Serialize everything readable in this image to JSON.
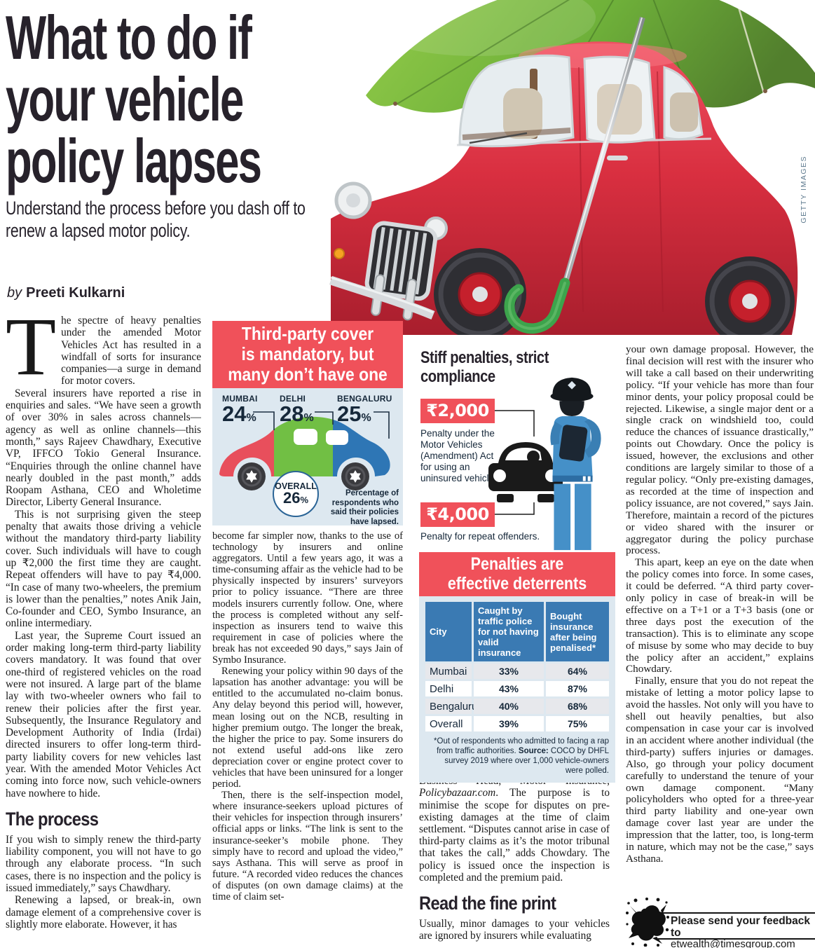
{
  "header": {
    "headline": "What to do if your vehicle policy lapses",
    "subtitle": "Understand the process before you dash off to renew a lapsed motor policy.",
    "byline_prefix": "by",
    "byline_name": "Preeti Kulkarni",
    "credit": "GETTY IMAGES"
  },
  "columns": [
    {
      "blocks": [
        {
          "type": "dropcap",
          "cap": "T",
          "text": "he spectre of heavy penalties under the amended Motor Vehicles Act has resulted in a windfall of sorts for insurance companies—a surge in demand for motor covers."
        },
        {
          "type": "p",
          "indent": true,
          "text": "Several insurers have reported a rise in enquiries and sales. “We have seen a growth of over 30% in sales across channels—agency as well as online channels—this month,” says Rajeev Chawdhary, Executive VP, IFFCO Tokio General Insurance. “Enquiries through the online channel have nearly doubled in the past month,” adds Roopam Asthana, CEO and Wholetime Director, Liberty General Insurance."
        },
        {
          "type": "p",
          "indent": true,
          "text": "This is not surprising given the steep penalty that awaits those driving a vehicle without the mandatory third-party liability cover. Such individuals will have to cough up ₹2,000 the first time they are caught. Repeat offenders will have to pay ₹4,000. “In case of many two-wheelers, the premium is lower than the penalties,” notes Anik Jain, Co-founder and CEO, Symbo Insurance, an online intermediary."
        },
        {
          "type": "p",
          "indent": true,
          "text": "Last year, the Supreme Court issued an order making long-term third-party liability covers mandatory. It was found that over one-third of registered vehicles on the road were not insured. A large part of the blame lay with two-wheeler owners who fail to renew their policies after the first year. Subsequently, the Insurance Regulatory and Development Authority of India (Irdai) directed insurers to offer long-term third-party liability covers for new vehicles last year. With the amended Motor Vehicles Act coming into force now, such vehicle-owners have nowhere to hide."
        },
        {
          "type": "h",
          "text": "The process"
        },
        {
          "type": "p",
          "text": "If you wish to simply renew the third-party liability component, you will not have to go through any elaborate process. “In such cases, there is no inspection and the policy is issued immediately,” says Chawdhary."
        },
        {
          "type": "p",
          "indent": true,
          "text": "Renewing a lapsed, or break-in, own damage element of a comprehensive cover is slightly more elaborate. However, it has"
        }
      ]
    },
    {
      "blocks": [
        {
          "type": "p",
          "text": "become far simpler now, thanks to the use of technology by insurers and online aggregators. Until a few years ago, it was a time-consuming affair as the vehicle had to be physically inspected by insurers’ surveyors prior to policy issuance. “There are three models insurers currently follow. One, where the process is completed without any self-inspection as insurers tend to waive this requirement in case of policies where the break has not exceeded 90 days,” says Jain of Symbo Insurance."
        },
        {
          "type": "p",
          "indent": true,
          "text": "Renewing your policy within 90 days of the lapsation has another advantage: you will be entitled to the accumulated no-claim bonus. Any delay beyond this period will, however, mean losing out on the NCB, resulting in higher premium outgo. The longer the break, the higher the price to pay. Some insurers do not extend useful add-ons like zero depreciation cover or engine protect cover to vehicles that have been uninsured for a longer period."
        },
        {
          "type": "p",
          "indent": true,
          "text": "Then, there is the self-inspection model, where insurance-seekers upload pictures of their vehicles for inspection through insurers’ official apps or links. “The link is sent to the insurance-seeker’s mobile phone. They simply have to record and upload the video,” says Asthana. This will serve as proof in future. “A recorded video reduces the chances of disputes (on own damage claims) at the time of claim set-"
        }
      ]
    },
    {
      "blocks": [
        {
          "type": "p",
          "segments": [
            {
              "t": "tlement,” adds Sajja Praveen Chowdary, Business Head, Motor Insurance, "
            },
            {
              "t": "Policybazaar.com",
              "em": true
            },
            {
              "t": ". The purpose is to minimise the scope for disputes on pre-existing damages at the time of claim settlement. “Disputes cannot arise in case of third-party claims as it’s the motor tribunal that takes the call,” adds Chowdary. The policy is issued once the inspection is completed and the premium paid."
            }
          ]
        },
        {
          "type": "h",
          "text": "Read the fine print"
        },
        {
          "type": "p",
          "text": "Usually, minor damages to your vehicles are ignored by insurers while evaluating"
        }
      ]
    },
    {
      "blocks": [
        {
          "type": "p",
          "text": "your own damage proposal. However, the final decision will rest with the insurer who will take a call based on their underwriting policy. “If your vehicle has more than four minor dents, your policy proposal could be rejected. Likewise, a single major dent or a single crack on windshield too, could reduce the chances of issuance drastically,” points out Chowdary. Once the policy is issued, however, the exclusions and other conditions are largely similar to those of a regular policy. “Only pre-existing damages, as recorded at the time of inspection and policy issuance, are not covered,” says Jain. Therefore, maintain a record of the pictures or video shared with the insurer or aggregator during the policy purchase process."
        },
        {
          "type": "p",
          "indent": true,
          "text": "This apart, keep an eye on the date when the policy comes into force. In some cases, it could be deferred. “A third party cover-only policy in case of break-in will be effective on a T+1 or a T+3 basis (one or three days post the execution of the transaction). This is to eliminate any scope of misuse by some who may decide to buy the policy after an accident,” explains Chowdary."
        },
        {
          "type": "p",
          "indent": true,
          "text": "Finally, ensure that you do not repeat the mistake of letting a motor policy lapse to avoid the hassles. Not only will you have to shell out heavily penalties, but also compensation in case your car is involved in an accident where another individual (the third-party) suffers injuries or damages. Also, go through your policy document carefully to understand the tenure of your own damage component. “Many policyholders who opted for a three-year third party liability and one-year own damage cover last year are under the impression that the latter, too, is long-term in nature, which may not be the case,” says Asthana."
        }
      ]
    }
  ],
  "lapse_chart": {
    "title_lines": [
      "Third-party cover",
      "is mandatory, but",
      "many don’t have one"
    ],
    "cities": [
      {
        "name": "MUMBAI",
        "value": "24"
      },
      {
        "name": "DELHI",
        "value": "28"
      },
      {
        "name": "BENGALURU",
        "value": "25"
      }
    ],
    "unit": "%",
    "overall_label": "OVERALL",
    "overall_value": "26",
    "caption": "Percentage of respondents who said their policies have lapsed.",
    "colors": {
      "mumbai": "#e84f5c",
      "delhi": "#71bf44",
      "bengaluru": "#2e76b5"
    }
  },
  "penalties": {
    "heading": "Stiff penalties, strict compliance",
    "fine_first": {
      "amount": "₹2,000",
      "desc": "Penalty under the Motor Vehicles (Amendment) Act for using an uninsured vehicle."
    },
    "fine_repeat": {
      "amount": "₹4,000",
      "desc": "Penalty for repeat offenders."
    }
  },
  "penalty_table": {
    "title_lines": [
      "Penalties are",
      "effective deterrents"
    ],
    "headers": [
      "City",
      "Caught by traffic police for not having valid insurance",
      "Bought insurance after being penalised*"
    ],
    "rows": [
      {
        "city": "Mumbai",
        "caught": "33%",
        "bought": "64%"
      },
      {
        "city": "Delhi",
        "caught": "43%",
        "bought": "87%"
      },
      {
        "city": "Bengaluru",
        "caught": "40%",
        "bought": "68%"
      },
      {
        "city": "Overall",
        "caught": "39%",
        "bought": "75%"
      }
    ],
    "footnote_pre": "*Out of respondents who admitted to facing a rap from traffic authorities. ",
    "footnote_source_label": "Source:",
    "footnote_post": " COCO by DHFL survey 2019 where over 1,000 vehicle-owners were polled."
  },
  "feedback": {
    "line1": "Please send your feedback to",
    "line2": "etwealth@timesgroup.com"
  },
  "colors": {
    "accent_red": "#f0515a",
    "table_header_blue": "#3a7ab3",
    "panel_blue": "#dde8f0",
    "navy_text": "#16283a",
    "police_blue": "#4590c8",
    "umbrella_green": "#6fb13a",
    "car_red": "#d92f40"
  }
}
